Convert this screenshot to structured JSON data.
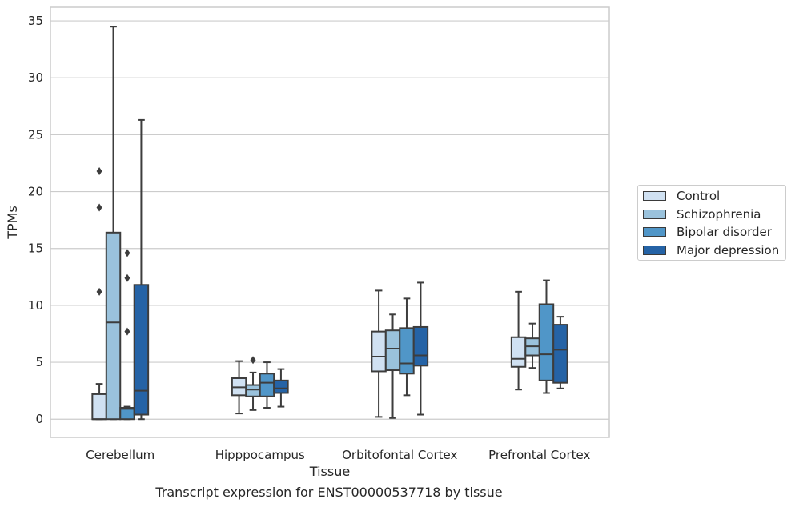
{
  "chart_data": {
    "type": "boxplot",
    "xlabel": "Tissue",
    "ylabel": "TPMs",
    "caption": "Transcript expression for ENST00000537718 by tissue",
    "ylim": [
      -1.6,
      36.2
    ],
    "yticks": [
      0,
      5,
      10,
      15,
      20,
      25,
      30,
      35
    ],
    "grid": "horizontal",
    "legend_placement": "right",
    "categories": [
      "Cerebellum",
      "Hipppocampus",
      "Orbitofontal Cortex",
      "Prefrontal Cortex"
    ],
    "series": [
      {
        "name": "Control",
        "color": "#d0e1f2",
        "boxes": [
          {
            "whislo": 0.0,
            "q1": 0.0,
            "med": 0.0,
            "q3": 2.2,
            "whishi": 3.1,
            "fliers": [
              11.2,
              18.6,
              21.8
            ]
          },
          {
            "whislo": 0.5,
            "q1": 2.1,
            "med": 2.8,
            "q3": 3.6,
            "whishi": 5.1,
            "fliers": []
          },
          {
            "whislo": 0.2,
            "q1": 4.2,
            "med": 5.5,
            "q3": 7.7,
            "whishi": 11.3,
            "fliers": []
          },
          {
            "whislo": 2.6,
            "q1": 4.6,
            "med": 5.3,
            "q3": 7.2,
            "whishi": 11.2,
            "fliers": []
          }
        ]
      },
      {
        "name": "Schizophrenia",
        "color": "#9ac2dc",
        "boxes": [
          {
            "whislo": 0.0,
            "q1": 0.0,
            "med": 8.5,
            "q3": 16.4,
            "whishi": 34.5,
            "fliers": []
          },
          {
            "whislo": 0.8,
            "q1": 2.0,
            "med": 2.6,
            "q3": 3.0,
            "whishi": 4.1,
            "fliers": [
              5.2
            ]
          },
          {
            "whislo": 0.1,
            "q1": 4.3,
            "med": 6.2,
            "q3": 7.8,
            "whishi": 9.2,
            "fliers": []
          },
          {
            "whislo": 4.5,
            "q1": 5.6,
            "med": 6.4,
            "q3": 7.1,
            "whishi": 8.4,
            "fliers": []
          }
        ]
      },
      {
        "name": "Bipolar disorder",
        "color": "#5096c8",
        "boxes": [
          {
            "whislo": 0.0,
            "q1": 0.0,
            "med": 0.9,
            "q3": 1.0,
            "whishi": 1.1,
            "fliers": [
              7.7,
              12.4,
              14.6
            ]
          },
          {
            "whislo": 1.0,
            "q1": 2.0,
            "med": 3.2,
            "q3": 4.0,
            "whishi": 5.0,
            "fliers": []
          },
          {
            "whislo": 2.1,
            "q1": 4.0,
            "med": 4.9,
            "q3": 8.0,
            "whishi": 10.6,
            "fliers": []
          },
          {
            "whislo": 2.3,
            "q1": 3.4,
            "med": 5.7,
            "q3": 10.1,
            "whishi": 12.2,
            "fliers": []
          }
        ]
      },
      {
        "name": "Major depression",
        "color": "#2563a6",
        "boxes": [
          {
            "whislo": 0.0,
            "q1": 0.4,
            "med": 2.5,
            "q3": 11.8,
            "whishi": 26.3,
            "fliers": []
          },
          {
            "whislo": 1.1,
            "q1": 2.3,
            "med": 2.7,
            "q3": 3.4,
            "whishi": 4.4,
            "fliers": []
          },
          {
            "whislo": 0.4,
            "q1": 4.7,
            "med": 5.6,
            "q3": 8.1,
            "whishi": 12.0,
            "fliers": []
          },
          {
            "whislo": 2.7,
            "q1": 3.2,
            "med": 6.1,
            "q3": 8.3,
            "whishi": 9.0,
            "fliers": []
          }
        ]
      }
    ]
  }
}
